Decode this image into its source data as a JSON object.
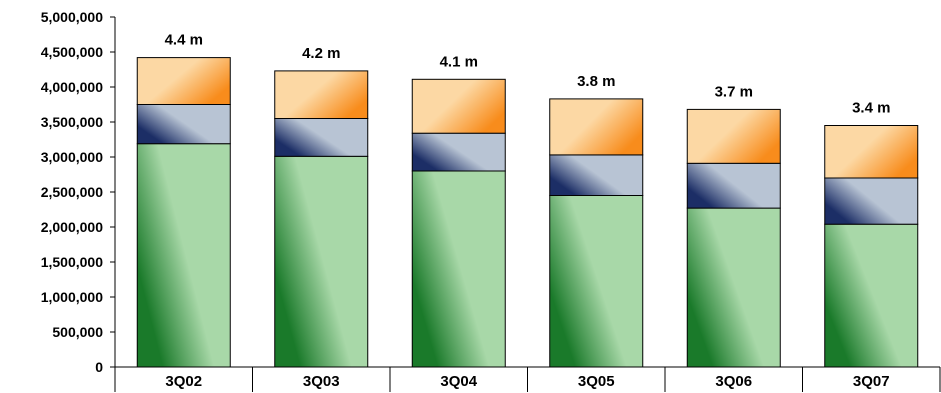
{
  "chart_data": {
    "type": "bar",
    "stacked": true,
    "categories": [
      "3Q02",
      "3Q03",
      "3Q04",
      "3Q05",
      "3Q06",
      "3Q07"
    ],
    "series": [
      {
        "values": [
          3190000,
          3010000,
          2800000,
          2450000,
          2270000,
          2040000
        ]
      },
      {
        "values": [
          560000,
          540000,
          540000,
          580000,
          640000,
          660000
        ]
      },
      {
        "values": [
          670000,
          680000,
          770000,
          800000,
          770000,
          750000
        ]
      }
    ],
    "total_labels": [
      "4.4 m",
      "4.2 m",
      "4.1 m",
      "3.8 m",
      "3.7 m",
      "3.4 m"
    ],
    "y_ticks": [
      "0",
      "500,000",
      "1,000,000",
      "1,500,000",
      "2,000,000",
      "2,500,000",
      "3,000,000",
      "3,500,000",
      "4,000,000",
      "4,500,000",
      "5,000,000"
    ],
    "ylim": [
      0,
      5000000
    ],
    "grid": false,
    "legend": "none",
    "colors": {
      "series_0_light": "#a8d8a8",
      "series_0_dark": "#1a7a2a",
      "series_1_light": "#b8c4d4",
      "series_1_dark": "#1c2e66",
      "series_2_light": "#fcd8a4",
      "series_2_dark": "#f88c1c"
    }
  }
}
